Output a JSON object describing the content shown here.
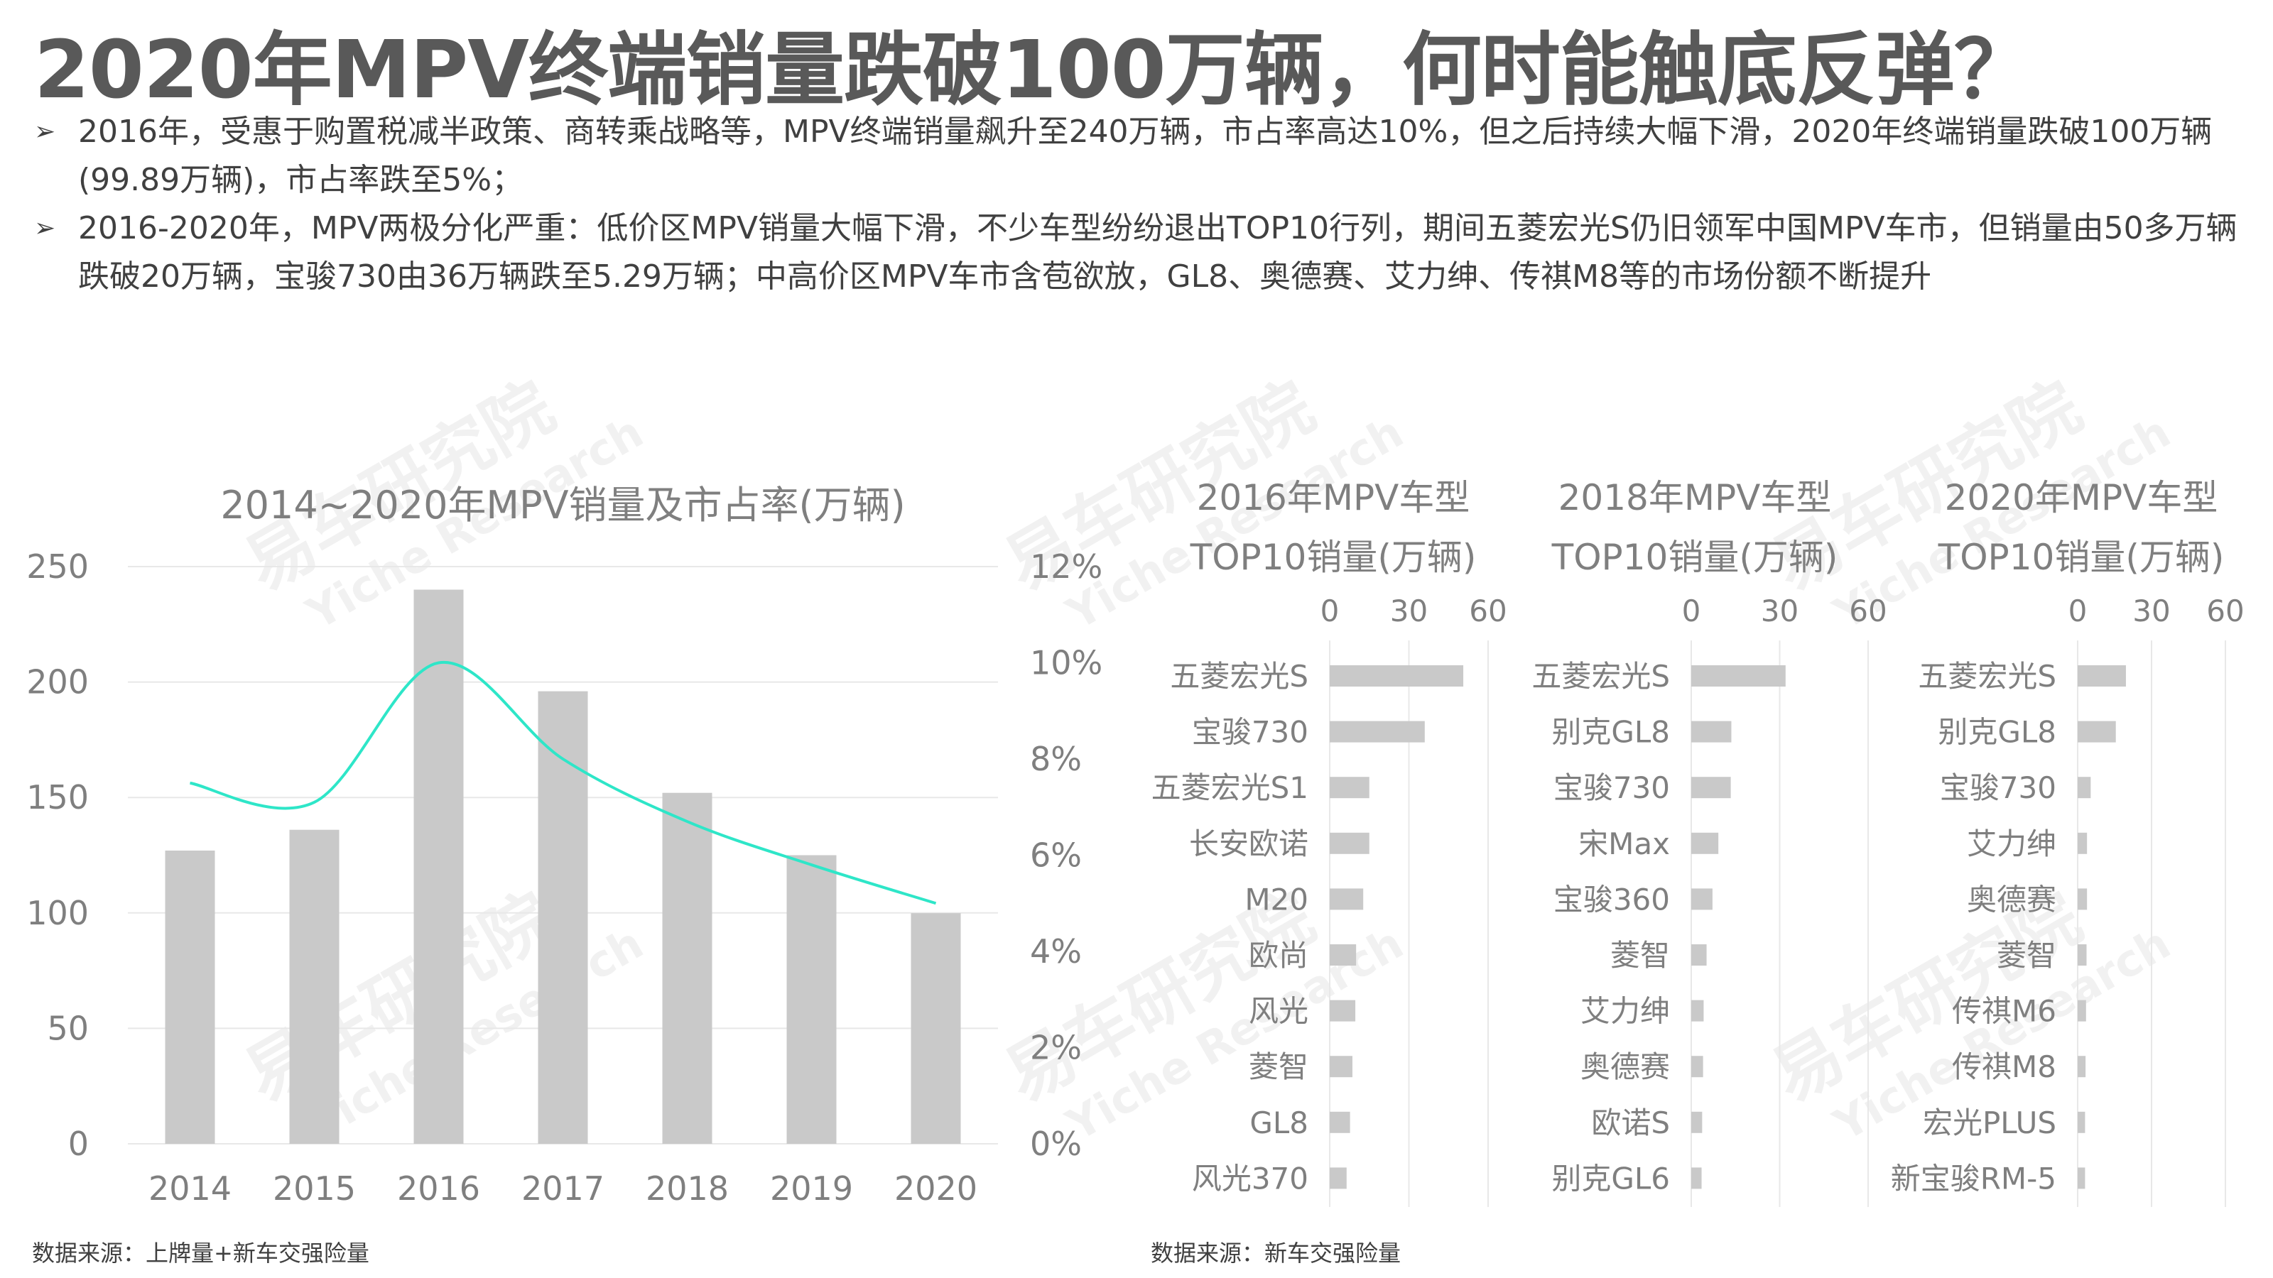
{
  "title": "2020年MPV终端销量跌破100万辆，何时能触底反弹？",
  "bullets": [
    "2016年，受惠于购置税减半政策、商转乘战略等，MPV终端销量飙升至240万辆，市占率高达10%，但之后持续大幅下滑，2020年终端销量跌破100万辆(99.89万辆)，市占率跌至5%；",
    "2016-2020年，MPV两极分化严重：低价区MPV销量大幅下滑，不少车型纷纷退出TOP10行列，期间五菱宏光S仍旧领军中国MPV车市，但销量由50多万辆跌破20万辆，宝骏730由36万辆跌至5.29万辆；中高价区MPV车市含苞欲放，GL8、奥德赛、艾力绅、传祺M8等的市场份额不断提升"
  ],
  "bullet_marker": "➢",
  "watermark": {
    "cn": "易车研究院",
    "en": "Yiche Research"
  },
  "sources": {
    "left": "数据来源：上牌量+新车交强险量",
    "right": "数据来源：新车交强险量"
  },
  "colors": {
    "bar": "#c9c9c9",
    "line": "#2ee6c8",
    "grid": "#e8e8e8",
    "text": "#7f7f7f"
  },
  "chart_data": [
    {
      "type": "bar+line",
      "title": "2014~2020年MPV销量及市占率(万辆)",
      "categories": [
        "2014",
        "2015",
        "2016",
        "2017",
        "2018",
        "2019",
        "2020"
      ],
      "series": [
        {
          "name": "销量(万辆)",
          "type": "bar",
          "axis": "left",
          "values": [
            127,
            136,
            240,
            196,
            152,
            125,
            99.89
          ]
        },
        {
          "name": "市占率",
          "type": "line",
          "axis": "right",
          "values": [
            7.5,
            7.1,
            10.0,
            8.0,
            6.7,
            5.8,
            5.0
          ]
        }
      ],
      "ylim": [
        0,
        250
      ],
      "yticks": [
        "0",
        "50",
        "100",
        "150",
        "200",
        "250"
      ],
      "y2lim": [
        0,
        12
      ],
      "y2ticks": [
        "0%",
        "2%",
        "4%",
        "6%",
        "8%",
        "10%",
        "12%"
      ],
      "grid": true
    },
    {
      "type": "bar",
      "orientation": "horizontal",
      "title": [
        "2016年MPV车型",
        "TOP10销量(万辆)"
      ],
      "categories": [
        "五菱宏光S",
        "宝骏730",
        "五菱宏光S1",
        "长安欧诺",
        "M20",
        "欧尚",
        "风光",
        "菱智",
        "GL8",
        "风光370"
      ],
      "values": [
        50.6,
        36,
        15,
        15,
        12.7,
        10,
        9.7,
        8.6,
        7.7,
        6.4
      ],
      "xlim": [
        0,
        60
      ],
      "xticks": [
        "0",
        "30",
        "60"
      ]
    },
    {
      "type": "bar",
      "orientation": "horizontal",
      "title": [
        "2018年MPV车型",
        "TOP10销量(万辆)"
      ],
      "categories": [
        "五菱宏光S",
        "别克GL8",
        "宝骏730",
        "宋Max",
        "宝骏360",
        "菱智",
        "艾力绅",
        "奥德赛",
        "欧诺S",
        "别克GL6"
      ],
      "values": [
        32,
        13.6,
        13.4,
        9.2,
        7.2,
        5.2,
        4.2,
        4.0,
        3.7,
        3.5
      ],
      "xlim": [
        0,
        60
      ],
      "xticks": [
        "0",
        "30",
        "60"
      ]
    },
    {
      "type": "bar",
      "orientation": "horizontal",
      "title": [
        "2020年MPV车型",
        "TOP10销量(万辆)"
      ],
      "categories": [
        "五菱宏光S",
        "别克GL8",
        "宝骏730",
        "艾力绅",
        "奥德赛",
        "菱智",
        "传祺M6",
        "传祺M8",
        "宏光PLUS",
        "新宝骏RM-5"
      ],
      "values": [
        19.6,
        15.5,
        5.29,
        3.8,
        3.8,
        3.6,
        3.4,
        3.2,
        3.0,
        3.0
      ],
      "xlim": [
        0,
        60
      ],
      "xticks": [
        "0",
        "30",
        "60"
      ]
    }
  ]
}
